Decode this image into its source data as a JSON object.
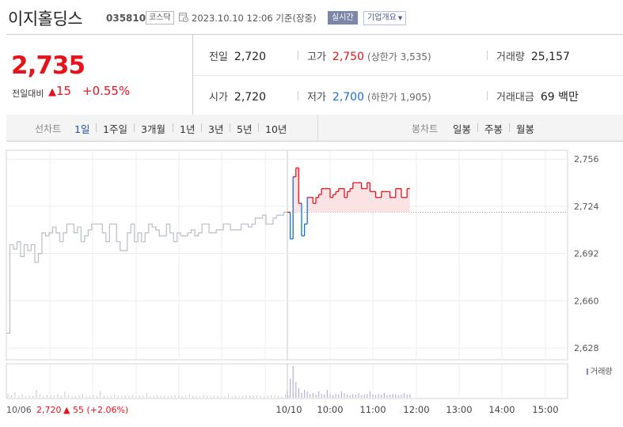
{
  "header": {
    "stock_name": "이지홀딩스",
    "stock_code": "035810",
    "market": "코스닥",
    "icon": "clock-icon",
    "timestamp": "2023.10.10 12:06 기준(장중)",
    "realtime_label": "실시간",
    "company_label": "기업개요"
  },
  "quote": {
    "price": "2,735",
    "change_label": "전일대비",
    "change_symbol": "▲",
    "change": "15",
    "change_rate": "+0.55%",
    "prev_close_label": "전일",
    "prev_close": "2,720",
    "high_label": "고가",
    "high": "2,750",
    "upper_limit": "(상한가 3,535)",
    "volume_label": "거래량",
    "volume": "25,157",
    "open_label": "시가",
    "open": "2,720",
    "low_label": "저가",
    "low": "2,700",
    "lower_limit": "(하한가 1,905)",
    "amount_label": "거래대금",
    "amount": "69 백만",
    "up_color": "#e5131c",
    "down_color": "#1a6fc5"
  },
  "tabs": {
    "line_chart_label": "선차트",
    "periods": [
      "1일",
      "1주일",
      "3개월",
      "1년",
      "3년",
      "5년",
      "10년"
    ],
    "active_period": "1일",
    "candle_chart_label": "봉차트",
    "candles": [
      "일봉",
      "주봉",
      "월봉"
    ]
  },
  "chart_data": {
    "type": "line",
    "y_ticks": [
      "2,756",
      "2,724",
      "2,692",
      "2,660",
      "2,628"
    ],
    "y_tick_values": [
      2756,
      2724,
      2692,
      2660,
      2628
    ],
    "ylim": [
      2620,
      2762
    ],
    "baseline": 2720,
    "volume_legend": "거래량",
    "prev_day_label": "10/06",
    "prev_day_close": "2,720",
    "prev_day_change": "▲ 55 (+2.06%)",
    "x_tick_labels": [
      "10/10",
      "10:00",
      "11:00",
      "12:00",
      "13:00",
      "14:00",
      "15:00"
    ],
    "prev_day_series": [
      2638,
      2698,
      2695,
      2700,
      2690,
      2698,
      2694,
      2698,
      2686,
      2692,
      2706,
      2704,
      2706,
      2710,
      2706,
      2700,
      2706,
      2712,
      2712,
      2706,
      2710,
      2700,
      2704,
      2708,
      2712,
      2712,
      2712,
      2706,
      2700,
      2712,
      2712,
      2700,
      2694,
      2694,
      2706,
      2712,
      2700,
      2706,
      2700,
      2706,
      2712,
      2710,
      2708,
      2704,
      2704,
      2712,
      2706,
      2700,
      2706,
      2704,
      2704,
      2706,
      2708,
      2704,
      2706,
      2712,
      2712,
      2706,
      2706,
      2708,
      2708,
      2712,
      2712,
      2708,
      2708,
      2708,
      2712,
      2712,
      2710,
      2712,
      2716,
      2716,
      2718,
      2712,
      2712,
      2716,
      2718,
      2718,
      2720,
      2720
    ],
    "today_series": [
      2720,
      2702,
      2744,
      2750,
      2726,
      2704,
      2712,
      2730,
      2730,
      2726,
      2730,
      2732,
      2736,
      2736,
      2736,
      2730,
      2732,
      2734,
      2736,
      2736,
      2730,
      2734,
      2736,
      2740,
      2740,
      2740,
      2736,
      2736,
      2740,
      2734,
      2734,
      2730,
      2730,
      2734,
      2734,
      2734,
      2730,
      2730,
      2736,
      2736,
      2730,
      2730,
      2736,
      2736
    ],
    "prev_day_volume": [
      0.25,
      0.15,
      0.3,
      0.1,
      0.2,
      0.08,
      0.12,
      0.1,
      0.45,
      0.2,
      0.1,
      0.15,
      0.08,
      0.12,
      0.2,
      0.1,
      0.35,
      0.15,
      0.08,
      0.1,
      0.12,
      0.2,
      0.08,
      0.1,
      0.15,
      0.1,
      0.4,
      0.12,
      0.08,
      0.1,
      0.2,
      0.1,
      0.08,
      0.12,
      0.1,
      0.15,
      0.08,
      0.1,
      0.12,
      0.3,
      0.1,
      0.08,
      0.15,
      0.1,
      0.12,
      0.08,
      0.1,
      0.15,
      0.1,
      0.08,
      0.12,
      0.2,
      0.1,
      0.08,
      0.1,
      0.15,
      0.1,
      0.08,
      0.12,
      0.1,
      0.08,
      0.1,
      0.25,
      0.1,
      0.12,
      0.08,
      0.1,
      0.15,
      0.1,
      0.08,
      0.12,
      0.1,
      0.08,
      0.1,
      0.15,
      0.12,
      0.1,
      0.08,
      0.2,
      0.1
    ],
    "today_volume": [
      0.2,
      0.6,
      1.0,
      0.5,
      0.3,
      0.15,
      0.25,
      0.2,
      0.12,
      0.15,
      0.1,
      0.2,
      0.12,
      0.1,
      0.25,
      0.1,
      0.08,
      0.12,
      0.1,
      0.2,
      0.15,
      0.1,
      0.08,
      0.12,
      0.1,
      0.15,
      0.08,
      0.1,
      0.12,
      0.2,
      0.1,
      0.08,
      0.12,
      0.1,
      0.15,
      0.08,
      0.1,
      0.12,
      0.1,
      0.08,
      0.1,
      0.15,
      0.1,
      0.12
    ],
    "colors": {
      "prev_day": "#b9bdc6",
      "up": "#e5131c",
      "down": "#1a6fc5",
      "up_fill": "#fbe3e3",
      "volume": "#b8b0d6"
    }
  }
}
